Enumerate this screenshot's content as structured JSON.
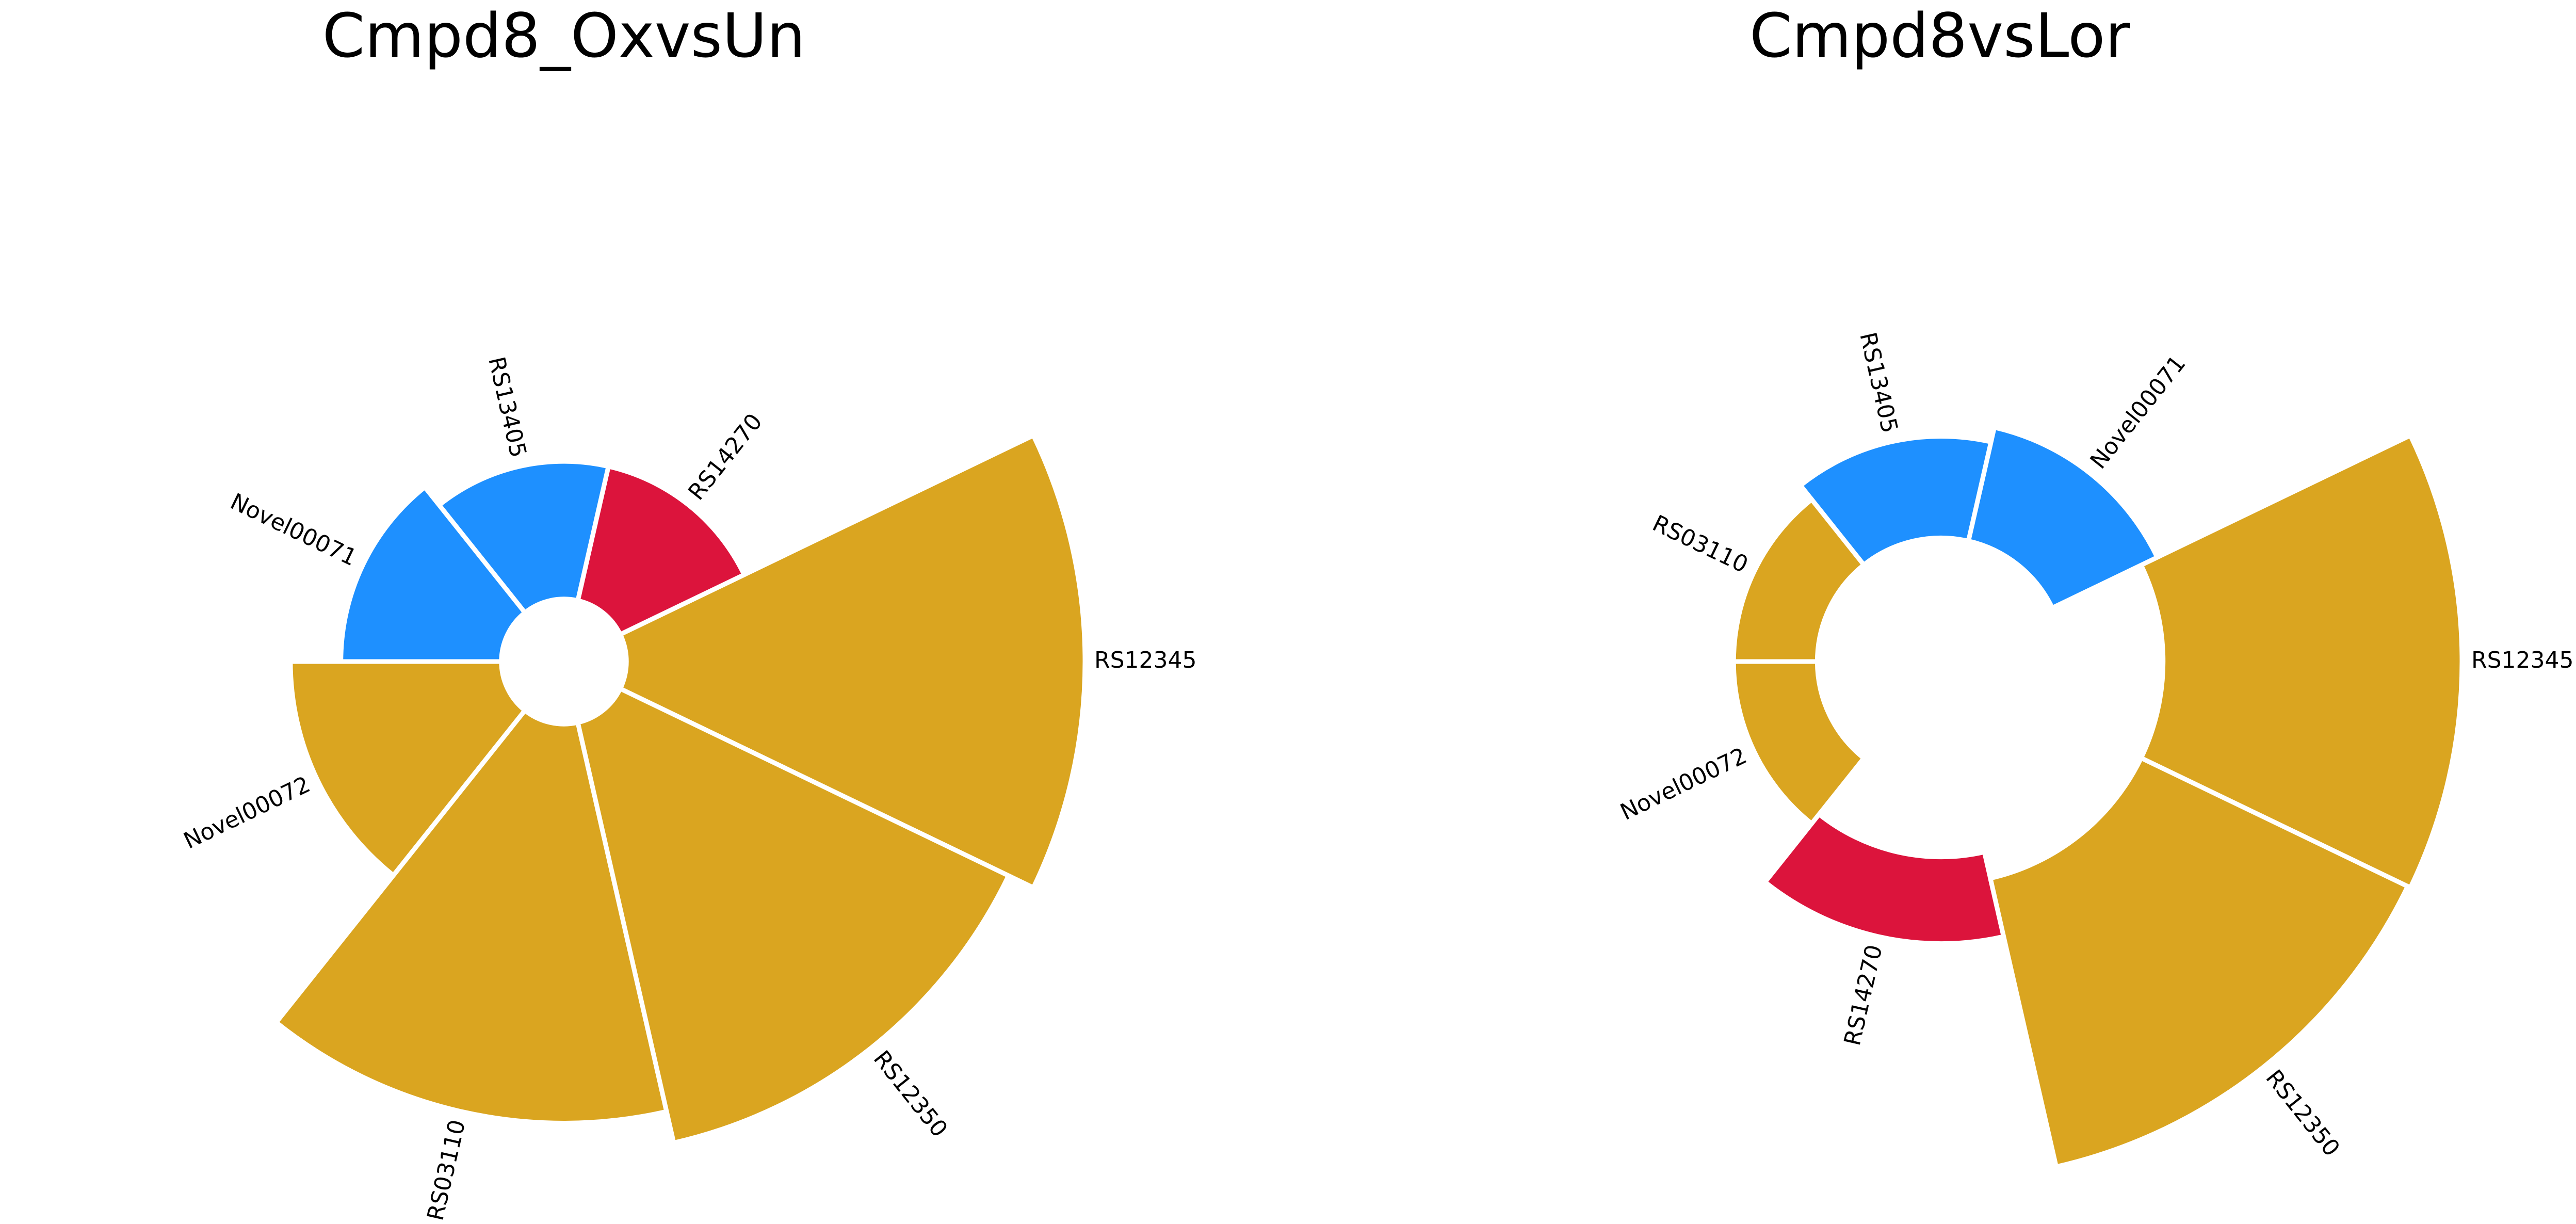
{
  "colors": {
    "gold": "#DAA520",
    "blue": "#1E90FF",
    "red": "#DC143C",
    "background": "#FFFFFF"
  },
  "chart_data": [
    {
      "type": "polar-bar",
      "title": "Cmpd8_OxvsUn",
      "grid": false,
      "legend": "none",
      "inner_radius": 0.12,
      "categories": [
        "RS12345",
        "RS14270",
        "RS13405",
        "Novel00071",
        "Novel00072",
        "RS03110",
        "RS12350"
      ],
      "values": [
        10,
        3,
        3,
        3.5,
        4.6,
        8.7,
        9.4
      ],
      "colors": [
        "gold",
        "red",
        "blue",
        "blue",
        "gold",
        "gold",
        "gold"
      ]
    },
    {
      "type": "polar-bar",
      "title": "Cmpd8vsLor",
      "grid": false,
      "legend": "none",
      "inner_radius": 0.22,
      "categories": [
        "RS12345",
        "Novel00071",
        "RS13405",
        "RS03110",
        "Novel00072",
        "RS14270",
        "RS12350"
      ],
      "values": [
        10,
        3.9,
        3.4,
        2.8,
        2.8,
        2.9,
        9.9
      ],
      "colors": [
        "gold",
        "blue",
        "blue",
        "gold",
        "gold",
        "red",
        "gold"
      ],
      "offsets": [
        3.6,
        0.3,
        0.3,
        0.3,
        0.3,
        2.7,
        3.6
      ]
    }
  ]
}
